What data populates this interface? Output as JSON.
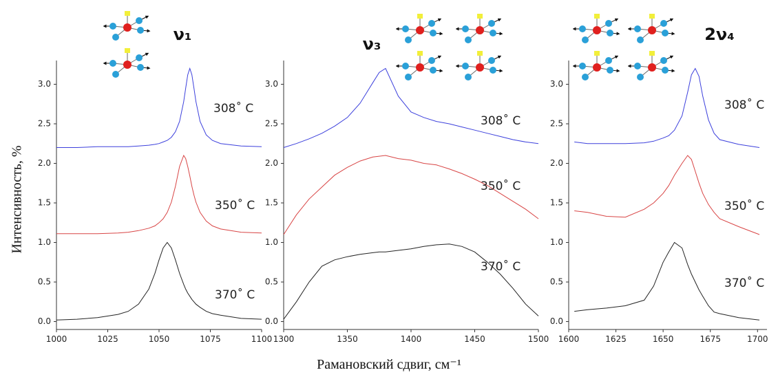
{
  "y_axis_label": "Интенсивность, %",
  "x_axis_label": "Рамановский сдвиг, см⁻¹",
  "chart_data": [
    {
      "type": "line",
      "title": "ν₁",
      "x": [
        1000,
        1010,
        1020,
        1030,
        1035,
        1040,
        1045,
        1048,
        1050,
        1052,
        1054,
        1056,
        1058,
        1060,
        1062,
        1063,
        1064,
        1065,
        1066,
        1067,
        1068,
        1070,
        1073,
        1076,
        1080,
        1090,
        1100
      ],
      "series": [
        {
          "name": "308˚ C",
          "color": "#3b3fdc",
          "values": [
            2.2,
            2.2,
            2.21,
            2.21,
            2.21,
            2.22,
            2.23,
            2.24,
            2.25,
            2.27,
            2.29,
            2.33,
            2.4,
            2.53,
            2.78,
            2.95,
            3.12,
            3.2,
            3.12,
            2.95,
            2.78,
            2.53,
            2.36,
            2.29,
            2.25,
            2.22,
            2.21
          ]
        },
        {
          "name": "350˚ C",
          "color": "#d84444",
          "values": [
            1.11,
            1.11,
            1.11,
            1.12,
            1.13,
            1.15,
            1.18,
            1.21,
            1.25,
            1.3,
            1.38,
            1.51,
            1.71,
            1.96,
            2.1,
            2.06,
            1.96,
            1.84,
            1.71,
            1.6,
            1.51,
            1.38,
            1.27,
            1.21,
            1.17,
            1.13,
            1.12
          ]
        },
        {
          "name": "370˚ C",
          "color": "#222222",
          "values": [
            0.02,
            0.03,
            0.05,
            0.09,
            0.13,
            0.22,
            0.41,
            0.61,
            0.78,
            0.93,
            1.0,
            0.93,
            0.78,
            0.61,
            0.47,
            0.41,
            0.36,
            0.32,
            0.28,
            0.25,
            0.22,
            0.18,
            0.13,
            0.1,
            0.08,
            0.04,
            0.03
          ]
        }
      ],
      "xlim": [
        1000,
        1100
      ],
      "xticks": [
        1000,
        1025,
        1050,
        1075,
        1100
      ],
      "ylim": [
        -0.1,
        3.3
      ],
      "yticks": [
        {
          "value": 0,
          "label": "0.0"
        },
        0.5,
        {
          "value": 1,
          "label": "1.0"
        },
        1.5,
        {
          "value": 2,
          "label": "2.0"
        },
        2.5,
        {
          "value": 3,
          "label": "3.0"
        }
      ]
    },
    {
      "type": "line",
      "title": "ν₃",
      "x": [
        1300,
        1310,
        1320,
        1330,
        1340,
        1350,
        1360,
        1370,
        1375,
        1380,
        1390,
        1400,
        1410,
        1420,
        1430,
        1440,
        1450,
        1460,
        1470,
        1480,
        1490,
        1500
      ],
      "series": [
        {
          "name": "308˚ C",
          "color": "#3b3fdc",
          "values": [
            2.2,
            2.25,
            2.31,
            2.38,
            2.47,
            2.58,
            2.76,
            3.02,
            3.15,
            3.2,
            2.85,
            2.65,
            2.58,
            2.53,
            2.5,
            2.46,
            2.42,
            2.38,
            2.34,
            2.3,
            2.27,
            2.25
          ]
        },
        {
          "name": "350˚ C",
          "color": "#d84444",
          "values": [
            1.1,
            1.35,
            1.55,
            1.7,
            1.85,
            1.95,
            2.03,
            2.08,
            2.09,
            2.1,
            2.06,
            2.04,
            2.0,
            1.98,
            1.93,
            1.87,
            1.8,
            1.72,
            1.62,
            1.52,
            1.42,
            1.3
          ]
        },
        {
          "name": "370˚ C",
          "color": "#222222",
          "values": [
            0.03,
            0.25,
            0.5,
            0.7,
            0.78,
            0.82,
            0.85,
            0.87,
            0.88,
            0.88,
            0.9,
            0.92,
            0.95,
            0.97,
            0.98,
            0.95,
            0.88,
            0.75,
            0.6,
            0.42,
            0.22,
            0.07
          ]
        }
      ],
      "xlim": [
        1300,
        1500
      ],
      "xticks": [
        1300,
        1350,
        1400,
        1450,
        1500
      ],
      "ylim": [
        -0.1,
        3.3
      ],
      "yticks": [
        {
          "value": 0,
          "label": "0.0"
        },
        0.5,
        {
          "value": 1,
          "label": "1.0"
        },
        1.5,
        {
          "value": 2,
          "label": "2.0"
        },
        2.5,
        {
          "value": 3,
          "label": "3.0"
        }
      ]
    },
    {
      "type": "line",
      "title": "2ν₄",
      "x": [
        1603,
        1610,
        1620,
        1630,
        1640,
        1645,
        1650,
        1653,
        1656,
        1660,
        1663,
        1665,
        1667,
        1669,
        1671,
        1674,
        1677,
        1680,
        1690,
        1701
      ],
      "series": [
        {
          "name": "308˚ C",
          "color": "#3b3fdc",
          "values": [
            2.27,
            2.25,
            2.25,
            2.25,
            2.26,
            2.28,
            2.32,
            2.35,
            2.42,
            2.6,
            2.9,
            3.12,
            3.2,
            3.1,
            2.85,
            2.55,
            2.38,
            2.3,
            2.24,
            2.2
          ]
        },
        {
          "name": "350˚ C",
          "color": "#d84444",
          "values": [
            1.4,
            1.38,
            1.33,
            1.32,
            1.42,
            1.5,
            1.62,
            1.72,
            1.85,
            2.0,
            2.1,
            2.05,
            1.9,
            1.75,
            1.62,
            1.48,
            1.38,
            1.3,
            1.2,
            1.1
          ]
        },
        {
          "name": "370˚ C",
          "color": "#222222",
          "values": [
            0.13,
            0.15,
            0.17,
            0.2,
            0.27,
            0.45,
            0.75,
            0.88,
            1.0,
            0.93,
            0.72,
            0.6,
            0.5,
            0.4,
            0.32,
            0.2,
            0.12,
            0.1,
            0.05,
            0.02
          ]
        }
      ],
      "xlim": [
        1600,
        1705
      ],
      "xticks": [
        1600,
        1625,
        1650,
        1675,
        1700
      ],
      "ylim": [
        -0.1,
        3.3
      ],
      "yticks": [
        {
          "value": 0,
          "label": "0.0"
        },
        0.5,
        {
          "value": 1,
          "label": "1.0"
        },
        1.5,
        {
          "value": 2,
          "label": "2.0"
        },
        2.5,
        {
          "value": 3,
          "label": "3.0"
        }
      ]
    }
  ]
}
